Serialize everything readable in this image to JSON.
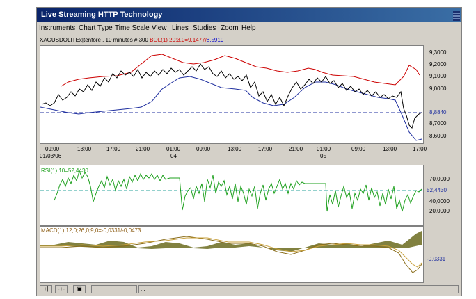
{
  "window": {
    "title": "Live Streaming HTTP Technology"
  },
  "menu": {
    "items": [
      "Instruments",
      "Chart Type",
      "Time Scale",
      "View",
      "Lines",
      "Studies",
      "Zoom",
      "Help"
    ]
  },
  "chart_header": {
    "instrument": "XAGUSDOLITEx|tenfore , 10 minutes # 300",
    "bol_label": "BOL(1) 20;3,0=9,1477/",
    "bol_value2": "8,5919"
  },
  "price_chart": {
    "y_ticks": [
      "9,3000",
      "9,2000",
      "9,1000",
      "9,0000",
      "8,8840",
      "8,7000",
      "8,6000"
    ],
    "current_value": "8,8840",
    "x_ticks": [
      "09:00",
      "13:00",
      "17:00",
      "21:00",
      "01:00",
      "09:00",
      "13:00",
      "17:00",
      "21:00",
      "01:00",
      "09:00",
      "13:00",
      "17:00"
    ],
    "date_labels": [
      "01/03/06",
      "04",
      "05"
    ]
  },
  "rsi_chart": {
    "label": "RSI(1) 10=52,4430",
    "y_ticks": [
      "70,0000",
      "40,0000",
      "20,0000"
    ],
    "current_value": "52,4430"
  },
  "macd_chart": {
    "label": "MACD(1) 12,0;26,0;9,0=-0,0331/-0,0473",
    "current_value": "-0,0331"
  },
  "statusbar": {
    "field2": "..."
  },
  "colors": {
    "price": "#000000",
    "bol_upper": "#cc0000",
    "bol_lower": "#1f2f9f",
    "rsi": "#1ea01e",
    "macd_fill": "#6b6b1f",
    "macd_line1": "#8a6d1a",
    "macd_line2": "#c8a03a"
  }
}
